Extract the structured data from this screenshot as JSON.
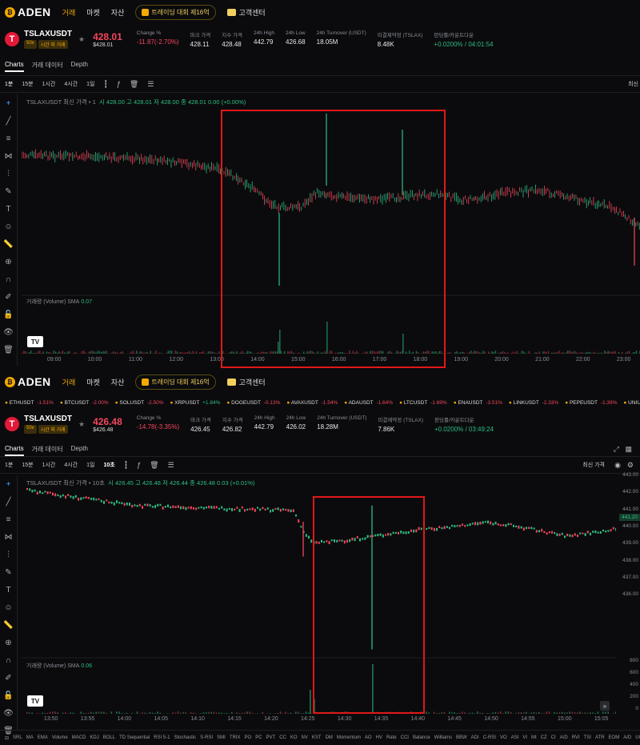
{
  "brand": "ADEN",
  "nav": [
    "거래",
    "마켓",
    "자산"
  ],
  "promo": "트레이딩 대회 제16억",
  "support": "고객센터",
  "top": {
    "symbol": "TSLAXUSDT",
    "leverage": "50x",
    "badge": "시간 외 거래",
    "price": "428.01",
    "price_usd": "$428.01",
    "stats": [
      {
        "l": "Change %",
        "v": "-11.87(-2.70%)",
        "c": "red"
      },
      {
        "l": "마크 가격",
        "v": "428.11"
      },
      {
        "l": "지수 가격",
        "v": "428.48"
      },
      {
        "l": "24h High",
        "v": "442.79"
      },
      {
        "l": "24h Low",
        "v": "426.68"
      },
      {
        "l": "24h Turnover (USDT)",
        "v": "18.05M"
      },
      {
        "l": "미결제약정 (TSLAX)",
        "v": "8.48K"
      },
      {
        "l": "펀딩률/카운트다운",
        "v": "+0.0200% / 04:01:54",
        "c": "green"
      }
    ],
    "tabs": [
      "Charts",
      "거래 데이터",
      "Depth"
    ],
    "toolbar": [
      "1분",
      "15분",
      "1시간",
      "4시간",
      "1일"
    ],
    "legend_label": "TSLAXUSDT 최신 가격 • 1",
    "legend_vals": "시 428.00 고 428.01 저 428.00 종 428.01 0.00 (+0.00%)",
    "vol_label": "거래량 (Volume) SMA",
    "vol_val": "0.07",
    "xticks": [
      "09:00",
      "10:00",
      "11:00",
      "12:00",
      "13:00",
      "14:00",
      "15:00",
      "16:00",
      "17:00",
      "18:00",
      "19:00",
      "20:00",
      "21:00",
      "22:00",
      "23:00"
    ],
    "right_cut": "최신"
  },
  "marquee": [
    {
      "s": "ETHUSDT",
      "c": "-1.51%"
    },
    {
      "s": "BTCUSDT",
      "c": "-2.00%"
    },
    {
      "s": "SOLUSDT",
      "c": "-2.50%"
    },
    {
      "s": "XRPUSDT",
      "c": "+1.84%"
    },
    {
      "s": "DOGEUSDT",
      "c": "-0.13%"
    },
    {
      "s": "AVAXUSDT",
      "c": "-1.54%"
    },
    {
      "s": "ADAUSDT",
      "c": "-1.64%"
    },
    {
      "s": "LTCUSDT",
      "c": "-1.69%"
    },
    {
      "s": "ENAUSDT",
      "c": "-3.51%"
    },
    {
      "s": "LINKUSDT",
      "c": "-2.33%"
    },
    {
      "s": "PEPEUSDT",
      "c": "-1.39%"
    },
    {
      "s": "UNIUSDT",
      "c": "-7.42%"
    }
  ],
  "bottom": {
    "symbol": "TSLAXUSDT",
    "leverage": "50x",
    "badge": "시간 외 거래",
    "price": "426.48",
    "price_usd": "$426.48",
    "stats": [
      {
        "l": "Change %",
        "v": "-14.78(-3.35%)",
        "c": "red"
      },
      {
        "l": "마크 가격",
        "v": "426.45"
      },
      {
        "l": "지수 가격",
        "v": "426.82"
      },
      {
        "l": "24h High",
        "v": "442.79"
      },
      {
        "l": "24h Low",
        "v": "426.02"
      },
      {
        "l": "24h Turnover (USDT)",
        "v": "18.28M"
      },
      {
        "l": "미결제약정 (TSLAX)",
        "v": "7.86K"
      },
      {
        "l": "펀딩률/카운트다운",
        "v": "+0.0200% / 03:49:24",
        "c": "green"
      }
    ],
    "tabs": [
      "Charts",
      "거래 데이터",
      "Depth"
    ],
    "toolbar": [
      "1분",
      "15분",
      "1시간",
      "4시간",
      "1일",
      "10초"
    ],
    "latest": "최신 가격",
    "legend_label": "TSLAXUSDT 최신 가격 • 10초",
    "legend_vals": "시 426.45 고 426.48 저 426.44 종 426.48 0.03 (+0.01%)",
    "vol_label": "거래량 (Volume) SMA",
    "vol_val": "0.06",
    "xticks": [
      "13:50",
      "13:55",
      "14:00",
      "14:05",
      "14:10",
      "14:15",
      "14:20",
      "14:25",
      "14:30",
      "14:35",
      "14:40",
      "14:45",
      "14:50",
      "14:55",
      "15:00",
      "15:05"
    ],
    "yticks": [
      "443.00",
      "442.00",
      "441.00",
      "440.00",
      "439.00",
      "438.00",
      "437.00",
      "436.00"
    ],
    "price_tag": "441.20",
    "vticks": [
      "800",
      "600",
      "400",
      "200",
      "0"
    ]
  },
  "indicators": [
    "SRL",
    "MA",
    "EMA",
    "Volume",
    "MACD",
    "KDJ",
    "BOLL",
    "TD Sequential",
    "RSI 5-1",
    "Stochastic",
    "S-RSI",
    "SMI",
    "TRIX",
    "PO",
    "PC",
    "PVT",
    "CC",
    "KO",
    "NV",
    "KST",
    "DM",
    "Momentum",
    "AO",
    "HV",
    "Rate",
    "CCI",
    "Balance",
    "Williams",
    "BBW",
    "ADI",
    "C-RSI",
    "VO",
    "ASI",
    "VI",
    "MI",
    "CZ",
    "CI",
    "A/D",
    "RVI",
    "TSI",
    "ATR",
    "EOM",
    "A/D",
    "UO",
    "OBV",
    "Elder's"
  ],
  "chart_data": [
    {
      "type": "candlestick",
      "title": "TSLAXUSDT 최신 가격 • 1",
      "interval": "1m",
      "x_labels": [
        "09:00",
        "10:00",
        "11:00",
        "12:00",
        "13:00",
        "14:00",
        "15:00",
        "16:00",
        "17:00",
        "18:00",
        "19:00",
        "20:00",
        "21:00",
        "22:00",
        "23:00"
      ],
      "last": {
        "open": 428.0,
        "high": 428.01,
        "low": 428.0,
        "close": 428.01
      }
    },
    {
      "type": "candlestick",
      "title": "TSLAXUSDT 최신 가격 • 10초",
      "interval": "10s",
      "x_labels": [
        "13:50",
        "13:55",
        "14:00",
        "14:05",
        "14:10",
        "14:15",
        "14:20",
        "14:25",
        "14:30",
        "14:35",
        "14:40",
        "14:45",
        "14:50",
        "14:55",
        "15:00",
        "15:05"
      ],
      "ylim": [
        435.5,
        443.5
      ],
      "last": {
        "open": 426.45,
        "high": 426.48,
        "low": 426.44,
        "close": 426.48
      }
    }
  ]
}
